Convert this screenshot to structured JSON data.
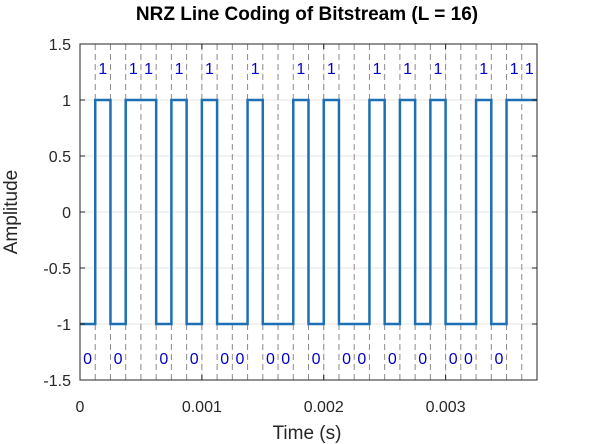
{
  "chart_data": {
    "type": "line",
    "title": "NRZ Line Coding of Bitstream (L = 16)",
    "xlabel": "Time (s)",
    "ylabel": "Amplitude",
    "xlim": [
      0,
      0.00375
    ],
    "ylim": [
      -1.5,
      1.5
    ],
    "xticks": [
      0,
      0.001,
      0.002,
      0.003
    ],
    "xtick_labels": [
      "0",
      "0.001",
      "0.002",
      "0.003"
    ],
    "yticks": [
      -1.5,
      -1,
      -0.5,
      0,
      0.5,
      1,
      1.5
    ],
    "ytick_labels": [
      "-1.5",
      "-1",
      "-0.5",
      "0",
      "0.5",
      "1",
      "1.5"
    ],
    "grid": true,
    "series_color": "#1f6fb5",
    "bit_label_color": "#0000cc",
    "symbol_period": 0.000125,
    "bits": [
      0,
      1,
      0,
      1,
      1,
      0,
      1,
      0,
      1,
      0,
      0,
      1,
      0,
      0,
      1,
      0,
      1,
      0,
      0,
      1,
      0,
      1,
      0,
      1,
      0,
      0,
      1,
      0,
      1,
      1
    ],
    "bit_labels": [
      "0",
      "1",
      "0",
      "1",
      "1",
      "0",
      "1",
      "0",
      "1",
      "0",
      "0",
      "1",
      "0",
      "0",
      "1",
      "0",
      "1",
      "0",
      "0",
      "1",
      "0",
      "1",
      "0",
      "1",
      "0",
      "0",
      "1",
      "0",
      "1",
      "1"
    ],
    "high_level": 1,
    "low_level": -1
  }
}
